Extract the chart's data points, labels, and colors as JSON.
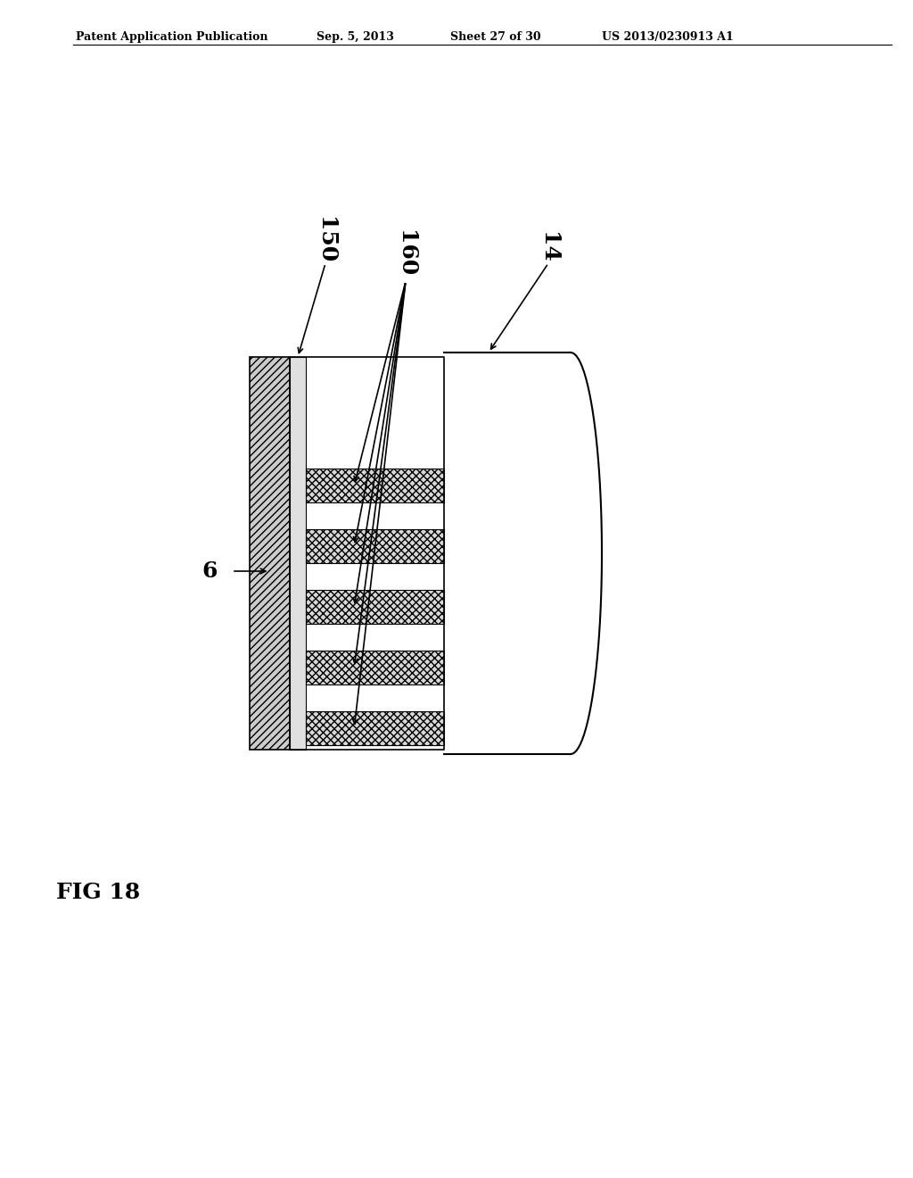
{
  "bg_color": "#ffffff",
  "header_text": "Patent Application Publication",
  "header_date": "Sep. 5, 2013",
  "header_sheet": "Sheet 27 of 30",
  "header_patent": "US 2013/0230913 A1",
  "fig_label": "FIG 18",
  "label_6": "6",
  "label_150": "150",
  "label_160": "160",
  "label_14": "14",
  "hatch_diag": "/",
  "hatch_cross": "x",
  "colors": {
    "wall_fill": "#d0d0d0",
    "wall_hatch": "#888888",
    "spacer_fill": "#e8e8e8",
    "stripe_fill": "#c8c8c8",
    "stripe_hatch": "#888888",
    "chip_fill": "#f0f0f0",
    "chip_hatch": "#888888",
    "outline": "#000000",
    "tube_fill": "#ffffff",
    "tube_outline": "#000000"
  }
}
